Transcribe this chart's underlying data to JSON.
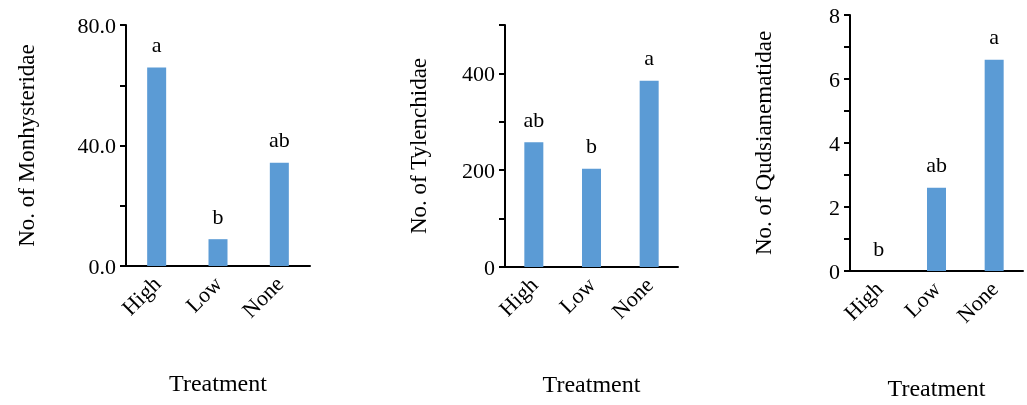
{
  "chart_data": [
    {
      "type": "bar",
      "categories": [
        "High",
        "Low",
        "None"
      ],
      "values": [
        65.9,
        8.9,
        34.3
      ],
      "color": "#5b9bd5",
      "xlabel": "Treatment",
      "ylabel": "No. of Monhysteridae",
      "ylim": [
        0,
        80
      ],
      "yticks": [
        {
          "value": 0,
          "label": "0.0"
        },
        {
          "value": 20,
          "label": null
        },
        {
          "value": 40,
          "label": "40.0"
        },
        {
          "value": 60,
          "label": null
        },
        {
          "value": 80,
          "label": "80.0"
        }
      ],
      "grid": false,
      "annotations": [
        {
          "text": "a",
          "x": "High",
          "y": 65.9
        },
        {
          "text": "b",
          "x": "Low",
          "y": 8.9
        },
        {
          "text": "ab",
          "x": "None",
          "y": 34.3
        }
      ]
    },
    {
      "type": "bar",
      "categories": [
        "High",
        "Low",
        "None"
      ],
      "values": [
        258,
        203,
        385
      ],
      "color": "#5b9bd5",
      "xlabel": "Treatment",
      "ylabel": "No. of Tylenchidae",
      "ylim": [
        0,
        500
      ],
      "yticks": [
        0,
        {
          "value": 100,
          "label": null
        },
        200,
        {
          "value": 300,
          "label": null
        },
        400,
        {
          "value": 500,
          "label": null
        }
      ],
      "grid": false,
      "annotations": [
        {
          "text": "ab",
          "x": "High",
          "y": 258
        },
        {
          "text": "b",
          "x": "Low",
          "y": 203
        },
        {
          "text": "a",
          "x": "None",
          "y": 385
        }
      ]
    },
    {
      "type": "bar",
      "categories": [
        "High",
        "Low",
        "None"
      ],
      "values": [
        0,
        2.6,
        6.6
      ],
      "color": "#5b9bd5",
      "xlabel": "Treatment",
      "ylabel": "No. of Qudsianematidae",
      "ylim": [
        0,
        8
      ],
      "yticks": [
        0,
        {
          "value": 1,
          "label": null
        },
        2,
        {
          "value": 3,
          "label": null
        },
        4,
        {
          "value": 5,
          "label": null
        },
        6,
        {
          "value": 7,
          "label": null
        },
        8
      ],
      "grid": false,
      "annotations": [
        {
          "text": "b",
          "x": "High",
          "y": 0
        },
        {
          "text": "ab",
          "x": "Low",
          "y": 2.6
        },
        {
          "text": "a",
          "x": "None",
          "y": 6.6
        }
      ]
    }
  ]
}
